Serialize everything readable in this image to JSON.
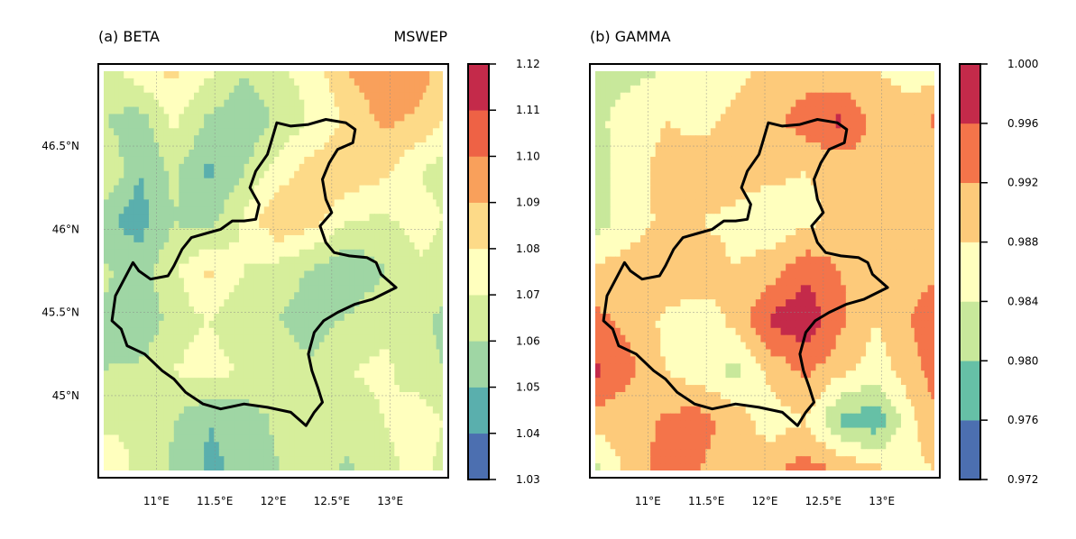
{
  "figure": {
    "panels": [
      {
        "title_left": "(a) BETA",
        "title_right": "MSWEP",
        "colorbar_ticks": [
          "1.12",
          "1.11",
          "1.10",
          "1.09",
          "1.08",
          "1.07",
          "1.06",
          "1.05",
          "1.04",
          "1.03"
        ],
        "x_ticks": [
          "11°E",
          "11.5°E",
          "12°E",
          "12.5°E",
          "13°E"
        ],
        "y_ticks": [
          "46.5°N",
          "46°N",
          "45.5°N",
          "45°N"
        ]
      },
      {
        "title_left": "(b) GAMMA",
        "title_right": "",
        "colorbar_ticks": [
          "1.000",
          "0.996",
          "0.992",
          "0.988",
          "0.984",
          "0.980",
          "0.976",
          "0.972"
        ],
        "x_ticks": [
          "11°E",
          "11.5°E",
          "12°E",
          "12.5°E",
          "13°E"
        ],
        "y_ticks": []
      }
    ]
  },
  "chart_data": [
    {
      "type": "heatmap",
      "title": "(a) BETA",
      "subtitle": "MSWEP",
      "x_ticks": [
        11.0,
        11.5,
        12.0,
        12.5,
        13.0
      ],
      "y_ticks": [
        46.5,
        46.0,
        45.5,
        45.0
      ],
      "xlim": [
        10.55,
        13.45
      ],
      "ylim": [
        44.55,
        46.95
      ],
      "colorbar": {
        "min": 1.03,
        "max": 1.12,
        "step": 0.01
      },
      "colors": [
        "#4c6fb0",
        "#5aafad",
        "#9fd6a4",
        "#d6ee9b",
        "#ffffbe",
        "#fdda88",
        "#f9a05b",
        "#ee6245",
        "#c42a4a"
      ],
      "grid_lon": [
        10.55,
        10.85,
        11.15,
        11.45,
        11.75,
        12.05,
        12.35,
        12.65,
        12.95,
        13.25,
        13.45
      ],
      "grid_lat": [
        46.95,
        46.65,
        46.35,
        46.05,
        45.75,
        45.45,
        45.15,
        44.85,
        44.55
      ],
      "values": [
        [
          1.065,
          1.075,
          1.083,
          1.072,
          1.06,
          1.068,
          1.075,
          1.09,
          1.1,
          1.095,
          1.085
        ],
        [
          1.06,
          1.055,
          1.072,
          1.058,
          1.052,
          1.062,
          1.072,
          1.082,
          1.092,
          1.088,
          1.08
        ],
        [
          1.072,
          1.05,
          1.062,
          1.048,
          1.06,
          1.075,
          1.085,
          1.088,
          1.082,
          1.07,
          1.065
        ],
        [
          1.052,
          1.045,
          1.06,
          1.055,
          1.072,
          1.09,
          1.083,
          1.07,
          1.068,
          1.075,
          1.07
        ],
        [
          1.062,
          1.055,
          1.068,
          1.082,
          1.07,
          1.065,
          1.058,
          1.05,
          1.06,
          1.068,
          1.065
        ],
        [
          1.058,
          1.05,
          1.065,
          1.07,
          1.062,
          1.06,
          1.055,
          1.062,
          1.068,
          1.062,
          1.058
        ],
        [
          1.06,
          1.062,
          1.07,
          1.075,
          1.068,
          1.065,
          1.062,
          1.07,
          1.072,
          1.065,
          1.06
        ],
        [
          1.068,
          1.07,
          1.06,
          1.05,
          1.055,
          1.062,
          1.06,
          1.065,
          1.07,
          1.075,
          1.07
        ],
        [
          1.075,
          1.068,
          1.058,
          1.048,
          1.052,
          1.06,
          1.065,
          1.058,
          1.068,
          1.072,
          1.068
        ]
      ]
    },
    {
      "type": "heatmap",
      "title": "(b) GAMMA",
      "x_ticks": [
        11.0,
        11.5,
        12.0,
        12.5,
        13.0
      ],
      "ylim": [
        44.55,
        46.95
      ],
      "xlim": [
        10.55,
        13.45
      ],
      "colorbar": {
        "min": 0.972,
        "max": 1.0,
        "step": 0.004
      },
      "colors": [
        "#4c6fb0",
        "#66c0a6",
        "#c8e89b",
        "#ffffbe",
        "#fdca7a",
        "#f4744a",
        "#c42a4a"
      ],
      "grid_lon": [
        10.55,
        10.85,
        11.15,
        11.45,
        11.75,
        12.05,
        12.35,
        12.65,
        12.95,
        13.25,
        13.45
      ],
      "grid_lat": [
        46.95,
        46.65,
        46.35,
        46.05,
        45.75,
        45.45,
        45.15,
        44.85,
        44.55
      ],
      "values": [
        [
          0.982,
          0.983,
          0.984,
          0.985,
          0.987,
          0.989,
          0.99,
          0.989,
          0.988,
          0.987,
          0.986
        ],
        [
          0.983,
          0.986,
          0.988,
          0.987,
          0.989,
          0.991,
          0.994,
          0.997,
          0.99,
          0.989,
          0.993
        ],
        [
          0.981,
          0.987,
          0.989,
          0.99,
          0.99,
          0.989,
          0.988,
          0.989,
          0.991,
          0.99,
          0.989
        ],
        [
          0.982,
          0.986,
          0.989,
          0.988,
          0.987,
          0.985,
          0.987,
          0.989,
          0.99,
          0.992,
          0.99
        ],
        [
          0.989,
          0.99,
          0.991,
          0.99,
          0.988,
          0.99,
          0.995,
          0.992,
          0.989,
          0.99,
          0.991
        ],
        [
          0.993,
          0.991,
          0.987,
          0.986,
          0.989,
          0.997,
          0.999,
          0.993,
          0.988,
          0.992,
          0.995
        ],
        [
          0.997,
          0.993,
          0.988,
          0.985,
          0.983,
          0.989,
          0.993,
          0.989,
          0.986,
          0.99,
          0.994
        ],
        [
          0.99,
          0.989,
          0.993,
          0.994,
          0.99,
          0.986,
          0.988,
          0.979,
          0.977,
          0.987,
          0.991
        ],
        [
          0.983,
          0.99,
          0.994,
          0.992,
          0.988,
          0.991,
          0.994,
          0.992,
          0.989,
          0.987,
          0.988
        ]
      ]
    }
  ]
}
